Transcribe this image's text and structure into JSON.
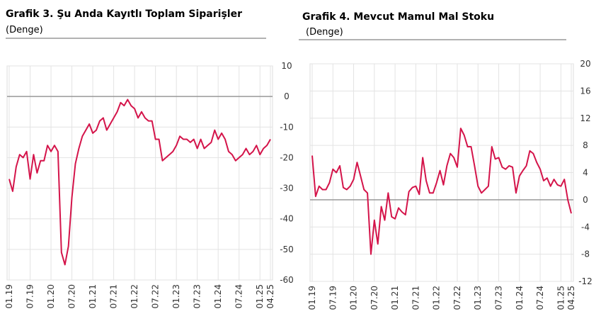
{
  "chart_data": [
    {
      "type": "line",
      "title": "Grafik 3. Şu Anda Kayıtlı Toplam Siparişler",
      "subtitle": "(Denge)",
      "categories": [
        "01.19",
        null,
        null,
        null,
        null,
        null,
        "07.19",
        null,
        null,
        null,
        null,
        null,
        "01.20",
        null,
        null,
        null,
        null,
        null,
        "07.20",
        null,
        null,
        null,
        null,
        null,
        "01.21",
        null,
        null,
        null,
        null,
        null,
        "07.21",
        null,
        null,
        null,
        null,
        null,
        "01.22",
        null,
        null,
        null,
        null,
        null,
        "07.22",
        null,
        null,
        null,
        null,
        null,
        "01.23",
        null,
        null,
        null,
        null,
        null,
        "07.23",
        null,
        null,
        null,
        null,
        null,
        "01.24",
        null,
        null,
        null,
        null,
        null,
        "07.24",
        null,
        null,
        null,
        null,
        null,
        "01.25",
        null,
        null,
        "04.25"
      ],
      "values": [
        -27,
        -31,
        -23,
        -19,
        -20,
        -18,
        -27,
        -19,
        -25,
        -21,
        -21,
        -16,
        -18,
        -16,
        -18,
        -51,
        -55,
        -49,
        -33,
        -22,
        -17,
        -13,
        -11,
        -9,
        -12,
        -11,
        -8,
        -7,
        -11,
        -9,
        -7,
        -5,
        -2,
        -3,
        -1,
        -3,
        -4,
        -7,
        -5,
        -7,
        -8,
        -8,
        -14,
        -14,
        -21,
        -20,
        -19,
        -18,
        -16,
        -13,
        -14,
        -14,
        -15,
        -14,
        -17,
        -14,
        -17,
        -16,
        -15,
        -11,
        -14,
        -12,
        -14,
        -18,
        -19,
        -21,
        -20,
        -19,
        -17,
        -19,
        -18,
        -16,
        -19,
        -17,
        -16,
        -14
      ],
      "color": "#d4144a",
      "ylim": [
        -60,
        10
      ],
      "yticks": [
        10,
        0,
        -10,
        -20,
        -30,
        -40,
        -50,
        -60
      ],
      "grid": true
    },
    {
      "type": "line",
      "title": "Grafik 4. Mevcut Mamul Mal Stoku",
      "subtitle": "(Denge)",
      "categories": [
        "01.19",
        null,
        null,
        null,
        null,
        null,
        "07.19",
        null,
        null,
        null,
        null,
        null,
        "01.20",
        null,
        null,
        null,
        null,
        null,
        "07.20",
        null,
        null,
        null,
        null,
        null,
        "01.21",
        null,
        null,
        null,
        null,
        null,
        "07.21",
        null,
        null,
        null,
        null,
        null,
        "01.22",
        null,
        null,
        null,
        null,
        null,
        "07.22",
        null,
        null,
        null,
        null,
        null,
        "01.23",
        null,
        null,
        null,
        null,
        null,
        "07.23",
        null,
        null,
        null,
        null,
        null,
        "01.24",
        null,
        null,
        null,
        null,
        null,
        "07.24",
        null,
        null,
        null,
        null,
        null,
        "01.25",
        null,
        null,
        "04.25"
      ],
      "values": [
        6.5,
        0.5,
        2,
        1.5,
        1.5,
        2.5,
        4.5,
        4,
        5,
        1.8,
        1.5,
        2,
        3,
        5.5,
        3.5,
        1.5,
        1,
        -8,
        -3,
        -6.5,
        -1,
        -3,
        1,
        -2.5,
        -2.8,
        -1.2,
        -1.8,
        -2.2,
        1.2,
        1.8,
        2,
        0.8,
        6.2,
        2.8,
        1,
        1,
        2.5,
        4.3,
        2.2,
        5,
        6.8,
        6.2,
        4.8,
        10.5,
        9.5,
        7.8,
        7.8,
        5,
        2,
        1,
        1.5,
        2,
        7.8,
        6,
        6.2,
        4.8,
        4.5,
        5,
        4.8,
        1,
        3.5,
        4.3,
        5,
        7.2,
        6.8,
        5.5,
        4.5,
        2.8,
        3.2,
        2,
        3,
        2.2,
        2,
        3,
        0,
        -2
      ],
      "color": "#d4144a",
      "ylim": [
        -12,
        20
      ],
      "yticks": [
        20,
        16,
        12,
        8,
        4,
        0,
        -4,
        -8,
        -12
      ],
      "grid": true
    }
  ]
}
